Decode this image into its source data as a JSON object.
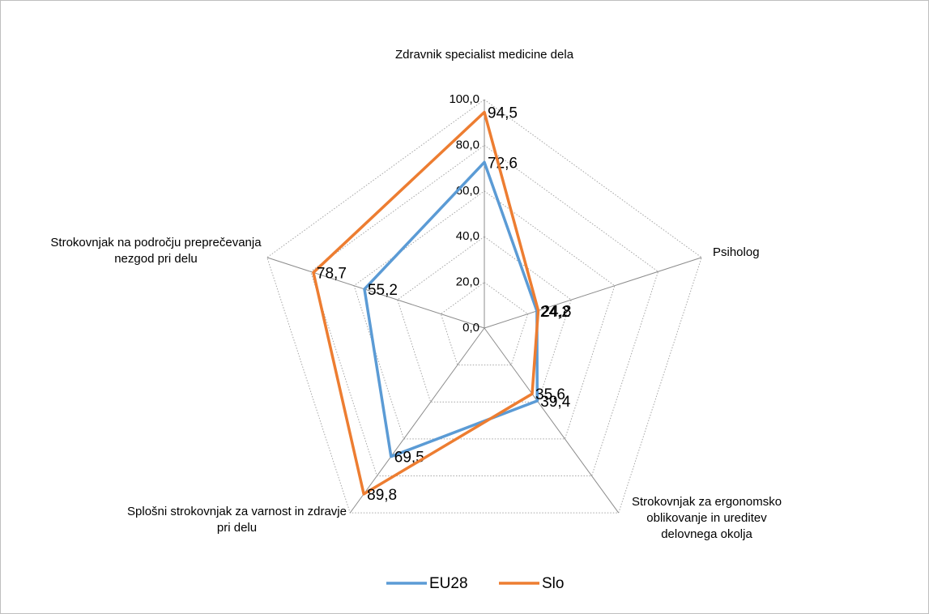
{
  "chart_data": {
    "type": "radar",
    "categories": [
      "Zdravnik specialist medicine dela",
      "Psiholog",
      "Strokovnjak za ergonomsko oblikovanje in ureditev delovnega okolja",
      "Splošni strokovnjak za varnost in zdravje pri delu",
      "Strokovnjak na področju preprečevanja nezgod pri delu"
    ],
    "series": [
      {
        "name": "EU28",
        "color": "#5b9bd5",
        "values": [
          72.6,
          24.2,
          39.4,
          69.5,
          55.2
        ],
        "value_labels": [
          "72,6",
          "24,2",
          "39,4",
          "69,5",
          "55,2"
        ]
      },
      {
        "name": "Slo",
        "color": "#ed7d31",
        "values": [
          94.5,
          24.8,
          35.6,
          89.8,
          78.7
        ],
        "value_labels": [
          "94,5",
          "24,8",
          "35,6",
          "89,8",
          "78,7"
        ]
      }
    ],
    "ylim": [
      0,
      100
    ],
    "yticks": [
      {
        "value": 0,
        "label": "0,0"
      },
      {
        "value": 20,
        "label": "20,0"
      },
      {
        "value": 40,
        "label": "40,0"
      },
      {
        "value": 60,
        "label": "60,0"
      },
      {
        "value": 80,
        "label": "80,0"
      },
      {
        "value": 100,
        "label": "100,0"
      }
    ],
    "grid": true,
    "legend": "bottom"
  }
}
